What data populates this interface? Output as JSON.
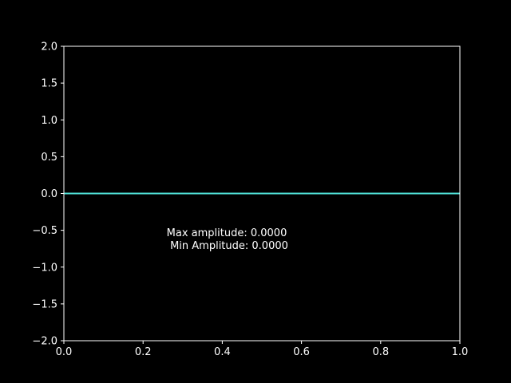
{
  "colors": {
    "background": "#000000",
    "axes": "#ffffff",
    "text": "#ffffff",
    "line": "#4fe0d6"
  },
  "chart_data": {
    "type": "line",
    "title": "",
    "xlabel": "",
    "ylabel": "",
    "xlim": [
      0.0,
      1.0
    ],
    "ylim": [
      -2.0,
      2.0
    ],
    "grid": false,
    "x_ticks": [
      "0.0",
      "0.2",
      "0.4",
      "0.6",
      "0.8",
      "1.0"
    ],
    "y_ticks": [
      "2.0",
      "1.5",
      "1.0",
      "0.5",
      "0.0",
      "−0.5",
      "−1.0",
      "−1.5",
      "−2.0"
    ],
    "series": [
      {
        "x": [
          0.0,
          0.2,
          0.4,
          0.6,
          0.8,
          1.0
        ],
        "y": [
          0,
          0,
          0,
          0,
          0,
          0
        ]
      }
    ],
    "annotation": {
      "line1": "Max amplitude: 0.0000",
      "line2": "Min Amplitude: 0.0000"
    }
  }
}
